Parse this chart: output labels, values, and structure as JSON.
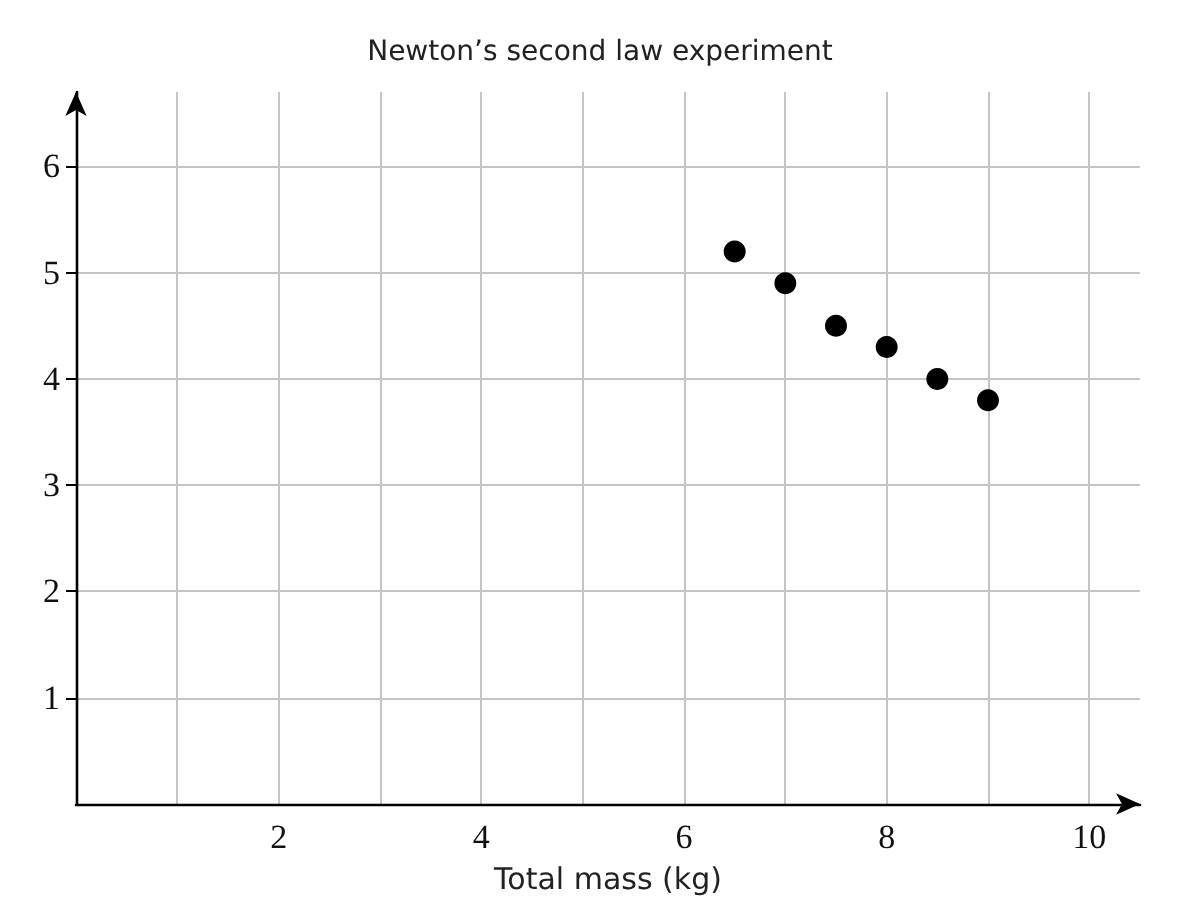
{
  "chart_data": {
    "type": "scatter",
    "title": "Newton’s second law experiment",
    "xlabel": "Total mass (kg)",
    "x": [
      6.5,
      7,
      7.5,
      8,
      8.5,
      9
    ],
    "values": [
      5.2,
      4.9,
      4.5,
      4.3,
      4.0,
      3.8
    ],
    "color": "#000000",
    "marker": "circle",
    "xlim": [
      0,
      10.5
    ],
    "ylim": [
      0,
      6.7
    ],
    "xticks": [
      {
        "value": 1,
        "label": null
      },
      2,
      {
        "value": 3,
        "label": null
      },
      4,
      {
        "value": 5,
        "label": null
      },
      6,
      {
        "value": 7,
        "label": null
      },
      8,
      {
        "value": 9,
        "label": null
      },
      10
    ],
    "yticks": [
      1,
      2,
      3,
      4,
      5,
      6
    ],
    "grid": true
  }
}
